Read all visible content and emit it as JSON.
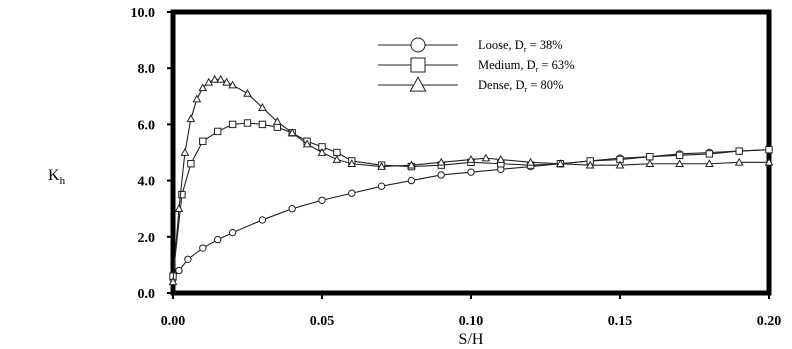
{
  "chart_data": {
    "type": "line",
    "xlabel": "S/H",
    "ylabel": "K",
    "ylabel_sub": "h",
    "xlim": [
      0.0,
      0.2
    ],
    "ylim": [
      0.0,
      10.0
    ],
    "xticks": [
      0.0,
      0.05,
      0.1,
      0.15,
      0.2
    ],
    "xtick_labels": [
      "0.00",
      "0.05",
      "0.10",
      "0.15",
      "0.20"
    ],
    "yticks": [
      0.0,
      2.0,
      4.0,
      6.0,
      8.0,
      10.0
    ],
    "ytick_labels": [
      "0.0",
      "2.0",
      "4.0",
      "6.0",
      "8.0",
      "10.0"
    ],
    "grid": false,
    "legend_position": "top-center",
    "series": [
      {
        "name": "Loose, D",
        "name_sub": "r",
        "name_suffix": " = 38%",
        "marker": "circle",
        "x": [
          0.0,
          0.002,
          0.005,
          0.01,
          0.015,
          0.02,
          0.03,
          0.04,
          0.05,
          0.06,
          0.07,
          0.08,
          0.09,
          0.1,
          0.11,
          0.12,
          0.13,
          0.14,
          0.15,
          0.16,
          0.17,
          0.18,
          0.19,
          0.2
        ],
        "y": [
          0.5,
          0.8,
          1.2,
          1.6,
          1.9,
          2.15,
          2.6,
          3.0,
          3.3,
          3.55,
          3.8,
          4.0,
          4.2,
          4.3,
          4.4,
          4.5,
          4.6,
          4.7,
          4.8,
          4.85,
          4.95,
          5.0,
          5.05,
          5.1
        ]
      },
      {
        "name": "Medium, D",
        "name_sub": "r",
        "name_suffix": " = 63%",
        "marker": "square",
        "x": [
          0.0,
          0.003,
          0.006,
          0.01,
          0.015,
          0.02,
          0.025,
          0.03,
          0.035,
          0.04,
          0.045,
          0.05,
          0.055,
          0.06,
          0.07,
          0.08,
          0.09,
          0.1,
          0.11,
          0.12,
          0.13,
          0.14,
          0.15,
          0.16,
          0.17,
          0.18,
          0.19,
          0.2
        ],
        "y": [
          0.6,
          3.5,
          4.6,
          5.4,
          5.75,
          6.0,
          6.05,
          6.0,
          5.9,
          5.7,
          5.4,
          5.2,
          5.0,
          4.7,
          4.55,
          4.5,
          4.55,
          4.65,
          4.6,
          4.55,
          4.6,
          4.7,
          4.75,
          4.85,
          4.9,
          4.95,
          5.05,
          5.1
        ]
      },
      {
        "name": "Dense, D",
        "name_sub": "r",
        "name_suffix": " = 80%",
        "marker": "triangle",
        "x": [
          0.0,
          0.002,
          0.004,
          0.006,
          0.008,
          0.01,
          0.012,
          0.014,
          0.016,
          0.018,
          0.02,
          0.025,
          0.03,
          0.035,
          0.04,
          0.045,
          0.05,
          0.055,
          0.06,
          0.07,
          0.08,
          0.09,
          0.1,
          0.105,
          0.11,
          0.12,
          0.13,
          0.14,
          0.15,
          0.16,
          0.17,
          0.18,
          0.19,
          0.2
        ],
        "y": [
          0.4,
          3.0,
          5.0,
          6.2,
          6.9,
          7.3,
          7.5,
          7.6,
          7.6,
          7.5,
          7.4,
          7.1,
          6.6,
          6.1,
          5.7,
          5.3,
          5.0,
          4.75,
          4.6,
          4.5,
          4.55,
          4.65,
          4.75,
          4.8,
          4.75,
          4.65,
          4.6,
          4.55,
          4.55,
          4.6,
          4.6,
          4.6,
          4.65,
          4.65
        ]
      }
    ]
  }
}
